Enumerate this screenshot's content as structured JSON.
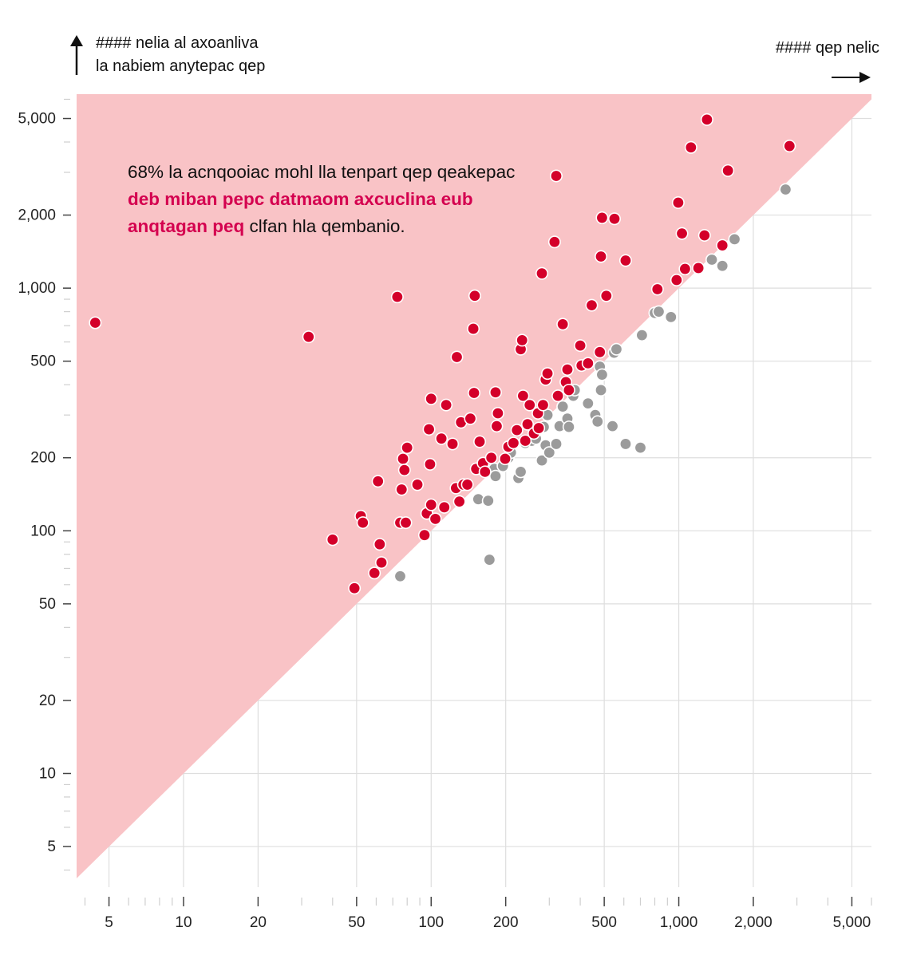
{
  "chart_data": {
    "type": "scatter",
    "xscale": "log",
    "yscale": "log",
    "xlim": [
      3.7,
      6000
    ],
    "ylim": [
      3.4,
      6300
    ],
    "grid": true,
    "ylabel_line1": "#### nelia al axoanliva",
    "ylabel_line2": "la nabiem anytepac qep",
    "xlabel": "#### qep nelic",
    "xticks": [
      5,
      10,
      20,
      50,
      100,
      200,
      500,
      1000,
      2000,
      5000
    ],
    "xtick_labels": [
      "5",
      "10",
      "20",
      "50",
      "100",
      "200",
      "500",
      "1,000",
      "2,000",
      "5,000"
    ],
    "yticks": [
      5,
      10,
      20,
      50,
      100,
      200,
      500,
      1000,
      2000,
      5000
    ],
    "ytick_labels": [
      "5",
      "10",
      "20",
      "50",
      "100",
      "200",
      "500",
      "1,000",
      "2,000",
      "5,000"
    ],
    "annotation": {
      "part1": "68% la acnqooiac mohl lla tenpart qep qeakepac ",
      "highlight": "deb miban pepc datmaom axcuclina eub anqtagan peq",
      "part2": " clfan hla qembanio."
    },
    "colors": {
      "region": "#f9c3c6",
      "above": "#d4002a",
      "below": "#9b9b9b",
      "highlight_text": "#d4004f"
    },
    "series": [
      {
        "group": "above",
        "points": [
          [
            4.4,
            720
          ],
          [
            32,
            630
          ],
          [
            40,
            92
          ],
          [
            49,
            58
          ],
          [
            52,
            115
          ],
          [
            53,
            108
          ],
          [
            59,
            67
          ],
          [
            61,
            160
          ],
          [
            62,
            88
          ],
          [
            63,
            74
          ],
          [
            73,
            920
          ],
          [
            75,
            108
          ],
          [
            76,
            148
          ],
          [
            77,
            198
          ],
          [
            78,
            178
          ],
          [
            79,
            108
          ],
          [
            80,
            220
          ],
          [
            88,
            155
          ],
          [
            94,
            96
          ],
          [
            96,
            118
          ],
          [
            98,
            262
          ],
          [
            99,
            188
          ],
          [
            100,
            128
          ],
          [
            100,
            350
          ],
          [
            104,
            112
          ],
          [
            110,
            240
          ],
          [
            113,
            125
          ],
          [
            115,
            330
          ],
          [
            122,
            228
          ],
          [
            126,
            150
          ],
          [
            127,
            520
          ],
          [
            130,
            132
          ],
          [
            132,
            280
          ],
          [
            135,
            155
          ],
          [
            140,
            155
          ],
          [
            144,
            290
          ],
          [
            148,
            680
          ],
          [
            149,
            370
          ],
          [
            150,
            930
          ],
          [
            152,
            180
          ],
          [
            157,
            233
          ],
          [
            162,
            190
          ],
          [
            165,
            175
          ],
          [
            175,
            200
          ],
          [
            182,
            372
          ],
          [
            184,
            270
          ],
          [
            186,
            305
          ],
          [
            199,
            198
          ],
          [
            205,
            222
          ],
          [
            215,
            230
          ],
          [
            222,
            260
          ],
          [
            230,
            560
          ],
          [
            233,
            610
          ],
          [
            235,
            360
          ],
          [
            240,
            235
          ],
          [
            245,
            275
          ],
          [
            250,
            330
          ],
          [
            260,
            252
          ],
          [
            270,
            305
          ],
          [
            272,
            265
          ],
          [
            280,
            1150
          ],
          [
            283,
            330
          ],
          [
            290,
            420
          ],
          [
            295,
            445
          ],
          [
            315,
            1550
          ],
          [
            320,
            2900
          ],
          [
            325,
            360
          ],
          [
            340,
            710
          ],
          [
            350,
            410
          ],
          [
            355,
            462
          ],
          [
            360,
            380
          ],
          [
            400,
            580
          ],
          [
            405,
            480
          ],
          [
            430,
            490
          ],
          [
            445,
            850
          ],
          [
            480,
            545
          ],
          [
            485,
            1350
          ],
          [
            490,
            1950
          ],
          [
            510,
            930
          ],
          [
            550,
            1930
          ],
          [
            610,
            1300
          ],
          [
            820,
            990
          ],
          [
            980,
            1080
          ],
          [
            995,
            2250
          ],
          [
            1030,
            1680
          ],
          [
            1060,
            1200
          ],
          [
            1120,
            3800
          ],
          [
            1200,
            1210
          ],
          [
            1270,
            1650
          ],
          [
            1300,
            4950
          ],
          [
            1500,
            1500
          ],
          [
            1580,
            3050
          ],
          [
            2800,
            3850
          ]
        ]
      },
      {
        "group": "below",
        "points": [
          [
            75,
            65
          ],
          [
            155,
            135
          ],
          [
            170,
            133
          ],
          [
            172,
            76
          ],
          [
            180,
            180
          ],
          [
            182,
            168
          ],
          [
            195,
            185
          ],
          [
            205,
            200
          ],
          [
            210,
            210
          ],
          [
            225,
            165
          ],
          [
            230,
            175
          ],
          [
            240,
            230
          ],
          [
            255,
            235
          ],
          [
            265,
            240
          ],
          [
            280,
            195
          ],
          [
            285,
            268
          ],
          [
            290,
            225
          ],
          [
            295,
            300
          ],
          [
            300,
            210
          ],
          [
            320,
            228
          ],
          [
            330,
            270
          ],
          [
            340,
            325
          ],
          [
            355,
            290
          ],
          [
            360,
            268
          ],
          [
            375,
            360
          ],
          [
            380,
            380
          ],
          [
            430,
            335
          ],
          [
            460,
            300
          ],
          [
            470,
            282
          ],
          [
            480,
            475
          ],
          [
            485,
            380
          ],
          [
            490,
            440
          ],
          [
            540,
            270
          ],
          [
            548,
            542
          ],
          [
            560,
            560
          ],
          [
            610,
            228
          ],
          [
            700,
            220
          ],
          [
            710,
            640
          ],
          [
            800,
            790
          ],
          [
            830,
            800
          ],
          [
            930,
            760
          ],
          [
            1360,
            1310
          ],
          [
            1500,
            1235
          ],
          [
            1680,
            1590
          ],
          [
            2700,
            2550
          ]
        ]
      }
    ]
  }
}
